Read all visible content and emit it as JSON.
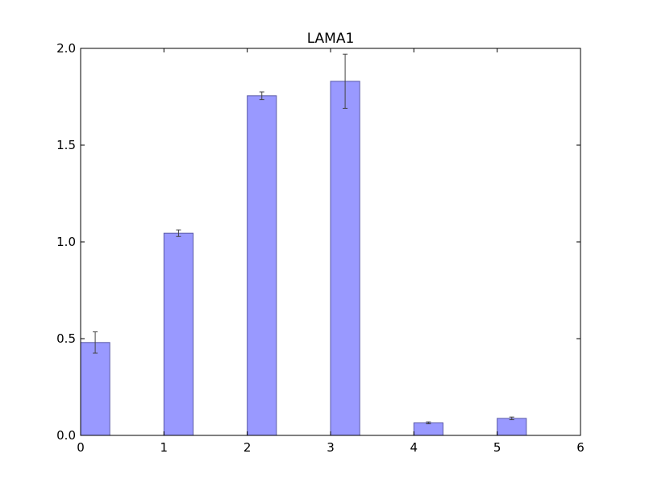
{
  "chart_data": {
    "type": "bar",
    "title": "LAMA1",
    "xlabel": "",
    "ylabel": "",
    "x": [
      0,
      1,
      2,
      3,
      4,
      5
    ],
    "values": [
      0.48,
      1.045,
      1.755,
      1.83,
      0.065,
      0.088
    ],
    "errors": [
      0.055,
      0.017,
      0.02,
      0.14,
      0.005,
      0.007
    ],
    "bar_width": 0.35,
    "xlim": [
      0,
      6
    ],
    "ylim": [
      0,
      2.0
    ],
    "xticks": [
      "0",
      "1",
      "2",
      "3",
      "4",
      "5",
      "6"
    ],
    "yticks": [
      "0.0",
      "0.5",
      "1.0",
      "1.5",
      "2.0"
    ],
    "grid": false,
    "colors": {
      "bar_fill": "#9999ff",
      "bar_edge": "#5a5aa8",
      "error_bar": "#444444",
      "axes": "#000000"
    }
  }
}
